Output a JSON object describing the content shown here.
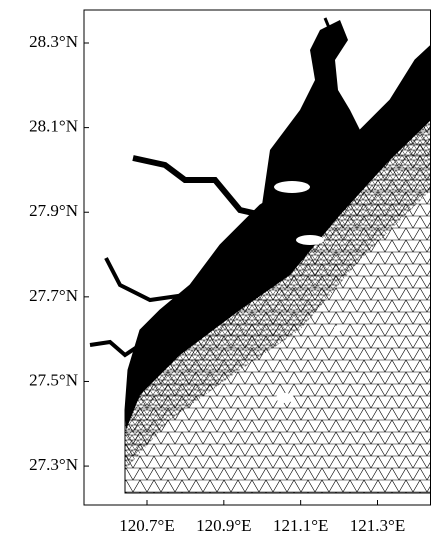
{
  "map": {
    "xlim": [
      120.536,
      121.438
    ],
    "ylim": [
      27.208,
      28.378
    ],
    "xticks": [
      {
        "value": 120.7,
        "label": "120.7°E"
      },
      {
        "value": 120.9,
        "label": "120.9°E"
      },
      {
        "value": 121.1,
        "label": "121.1°E"
      },
      {
        "value": 121.3,
        "label": "121.3°E"
      }
    ],
    "yticks": [
      {
        "value": 27.3,
        "label": "27.3°N"
      },
      {
        "value": 27.5,
        "label": "27.5°N"
      },
      {
        "value": 27.7,
        "label": "27.7°N"
      },
      {
        "value": 27.9,
        "label": "27.9°N"
      },
      {
        "value": 28.1,
        "label": "28.1°N"
      },
      {
        "value": 28.3,
        "label": "28.3°N"
      }
    ]
  }
}
